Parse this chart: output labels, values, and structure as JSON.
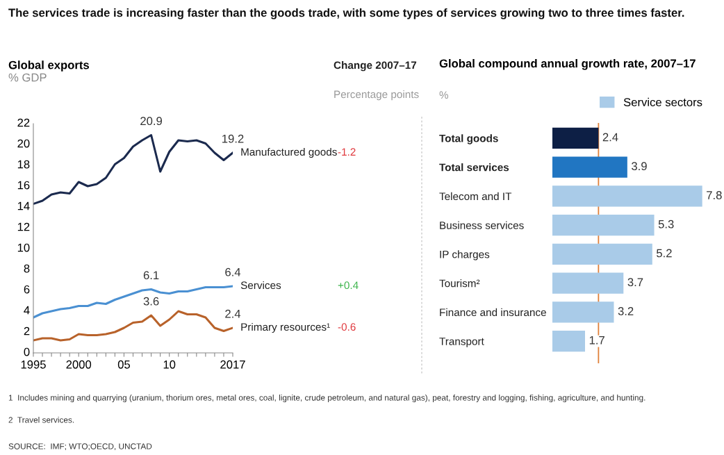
{
  "chart_data": [
    {
      "type": "line",
      "title": "Global exports",
      "subtitle": "% GDP",
      "x": [
        1995,
        1996,
        1997,
        1998,
        1999,
        2000,
        2001,
        2002,
        2003,
        2004,
        2005,
        2006,
        2007,
        2008,
        2009,
        2010,
        2011,
        2012,
        2013,
        2014,
        2015,
        2016,
        2017
      ],
      "series": [
        {
          "name": "Manufactured goods",
          "color": "#1b2a4e",
          "values": [
            14.3,
            14.6,
            15.2,
            15.4,
            15.3,
            16.4,
            16.0,
            16.2,
            16.8,
            18.1,
            18.7,
            19.8,
            20.4,
            20.9,
            17.4,
            19.3,
            20.4,
            20.3,
            20.4,
            20.1,
            19.2,
            18.5,
            19.2
          ],
          "value_labels": [
            null,
            null,
            null,
            null,
            null,
            null,
            null,
            null,
            null,
            null,
            null,
            null,
            null,
            "20.9",
            null,
            null,
            null,
            null,
            null,
            null,
            null,
            null,
            "19.2"
          ]
        },
        {
          "name": "Services",
          "color": "#4a90d2",
          "values": [
            3.4,
            3.8,
            4.0,
            4.2,
            4.3,
            4.5,
            4.5,
            4.8,
            4.7,
            5.1,
            5.4,
            5.7,
            6.0,
            6.1,
            5.8,
            5.7,
            5.9,
            5.9,
            6.1,
            6.3,
            6.3,
            6.3,
            6.4
          ],
          "value_labels": [
            null,
            null,
            null,
            null,
            null,
            null,
            null,
            null,
            null,
            null,
            null,
            null,
            null,
            "6.1",
            null,
            null,
            null,
            null,
            null,
            null,
            null,
            null,
            "6.4"
          ]
        },
        {
          "name": "Primary resources¹",
          "color": "#b8622a",
          "values": [
            1.2,
            1.4,
            1.4,
            1.2,
            1.3,
            1.8,
            1.7,
            1.7,
            1.8,
            2.0,
            2.4,
            2.9,
            3.0,
            3.6,
            2.6,
            3.2,
            4.0,
            3.7,
            3.7,
            3.4,
            2.4,
            2.1,
            2.4
          ],
          "value_labels": [
            null,
            null,
            null,
            null,
            null,
            null,
            null,
            null,
            null,
            null,
            null,
            null,
            null,
            "3.6",
            null,
            null,
            null,
            null,
            null,
            null,
            null,
            null,
            "2.4"
          ]
        }
      ],
      "xlim": [
        1995,
        2017
      ],
      "xticks": [
        1995,
        {
          "value": 1996,
          "label": null
        },
        {
          "value": 1997,
          "label": null
        },
        {
          "value": 1998,
          "label": null
        },
        {
          "value": 1999,
          "label": null
        },
        2000,
        {
          "value": 2001,
          "label": null
        },
        {
          "value": 2002,
          "label": null
        },
        {
          "value": 2003,
          "label": null
        },
        {
          "value": 2004,
          "label": null
        },
        {
          "value": 2005,
          "label": "05"
        },
        {
          "value": 2006,
          "label": null
        },
        {
          "value": 2007,
          "label": null
        },
        {
          "value": 2008,
          "label": null
        },
        {
          "value": 2009,
          "label": null
        },
        {
          "value": 2010,
          "label": "10"
        },
        {
          "value": 2011,
          "label": null
        },
        {
          "value": 2012,
          "label": null
        },
        {
          "value": 2013,
          "label": null
        },
        {
          "value": 2014,
          "label": null
        },
        {
          "value": 2015,
          "label": null
        },
        {
          "value": 2016,
          "label": null
        },
        2017
      ],
      "ylim": [
        0,
        22
      ],
      "yticks": [
        0,
        2,
        4,
        6,
        8,
        10,
        12,
        14,
        16,
        18,
        20,
        22
      ],
      "grid": false,
      "legend": false,
      "marker": "none",
      "line_style": "solid",
      "annotations": [
        "The services trade is increasing faster than the goods trade, with some types of services growing two to three times faster.",
        "Change 2007–17",
        "Percentage points",
        "-1.2",
        "+0.4",
        "-0.6"
      ]
    },
    {
      "type": "bar",
      "orientation": "horizontal",
      "title": "Global compound annual growth rate, 2007–17",
      "subtitle": "%",
      "categories": [
        "Total goods",
        "Total services",
        "Telecom and IT",
        "Business services",
        "IP charges",
        "Tourism²",
        "Finance and insurance",
        "Transport"
      ],
      "series": [
        {
          "name": "Service sectors",
          "color": "#a9cbe8",
          "colors": [
            "#0d1f45",
            "#2176c2",
            "#a9cbe8",
            "#a9cbe8",
            "#a9cbe8",
            "#a9cbe8",
            "#a9cbe8",
            "#a9cbe8"
          ],
          "values": [
            2.4,
            3.9,
            7.8,
            5.3,
            5.2,
            3.7,
            3.2,
            1.7
          ]
        }
      ],
      "data_labels": true,
      "legend": "top right",
      "grid": false,
      "ref_lines": [
        {
          "axis": "x",
          "value": 2.4,
          "color": "#e0803a"
        }
      ],
      "annotations": [
        "1  Includes mining and quarrying (uranium, thorium ores, metal ores, coal, lignite, crude petroleum, and natural gas), peat, forestry and logging, fishing, agriculture, and hunting.",
        "2  Travel services.",
        "SOURCE:  IMF; WTO;OECD, UNCTAD"
      ]
    }
  ]
}
